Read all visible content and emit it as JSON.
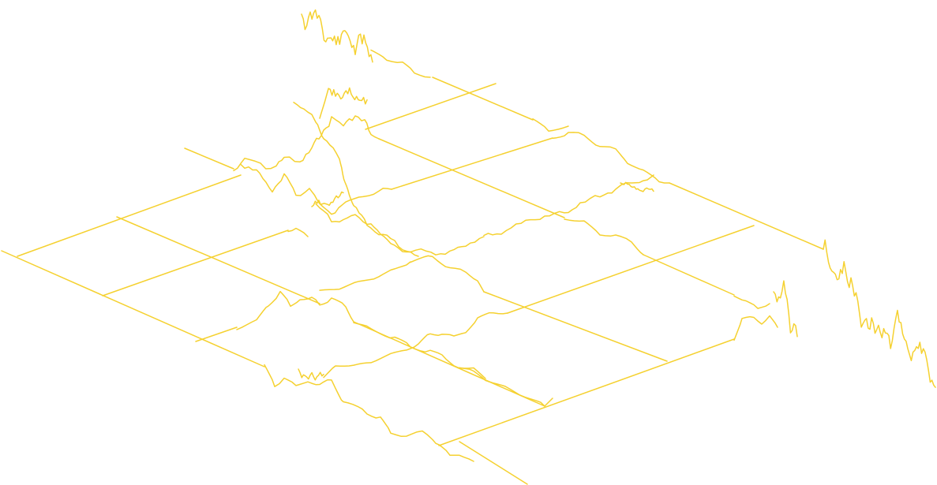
{
  "artwork": {
    "stroke_color": "#f5d130",
    "background_color": "#ffffff",
    "style": "isometric grid of wavy line traces"
  }
}
